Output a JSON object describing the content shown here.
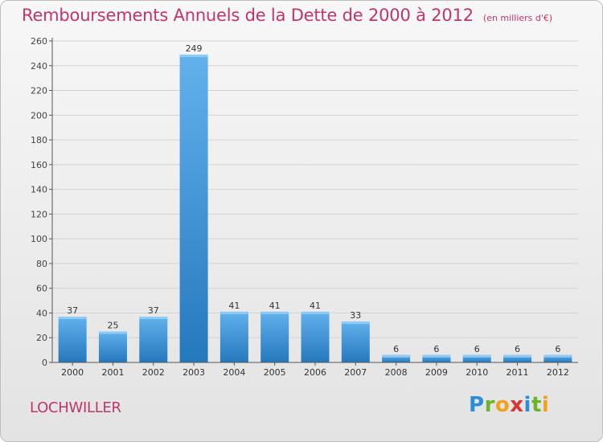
{
  "chart_data": {
    "type": "bar",
    "title": "Remboursements Annuels de la Dette de 2000 à 2012",
    "subtitle": "(en milliers d'€)",
    "xlabel": "",
    "ylabel": "",
    "categories": [
      "2000",
      "2001",
      "2002",
      "2003",
      "2004",
      "2005",
      "2006",
      "2007",
      "2008",
      "2009",
      "2010",
      "2011",
      "2012"
    ],
    "values": [
      37,
      25,
      37,
      249,
      41,
      41,
      41,
      33,
      6,
      6,
      6,
      6,
      6
    ],
    "ylim": [
      0,
      260
    ],
    "yticks": [
      0,
      20,
      40,
      60,
      80,
      100,
      120,
      140,
      160,
      180,
      200,
      220,
      240,
      260
    ],
    "grid": true,
    "bar_color": "#3a8fd6",
    "title_color": "#c0356d"
  },
  "footer": {
    "city": "LOCHWILLER",
    "logo": {
      "p": "P",
      "r": "r",
      "o": "o",
      "x": "x",
      "i1": "i",
      "t": "t",
      "i2": "i"
    }
  }
}
